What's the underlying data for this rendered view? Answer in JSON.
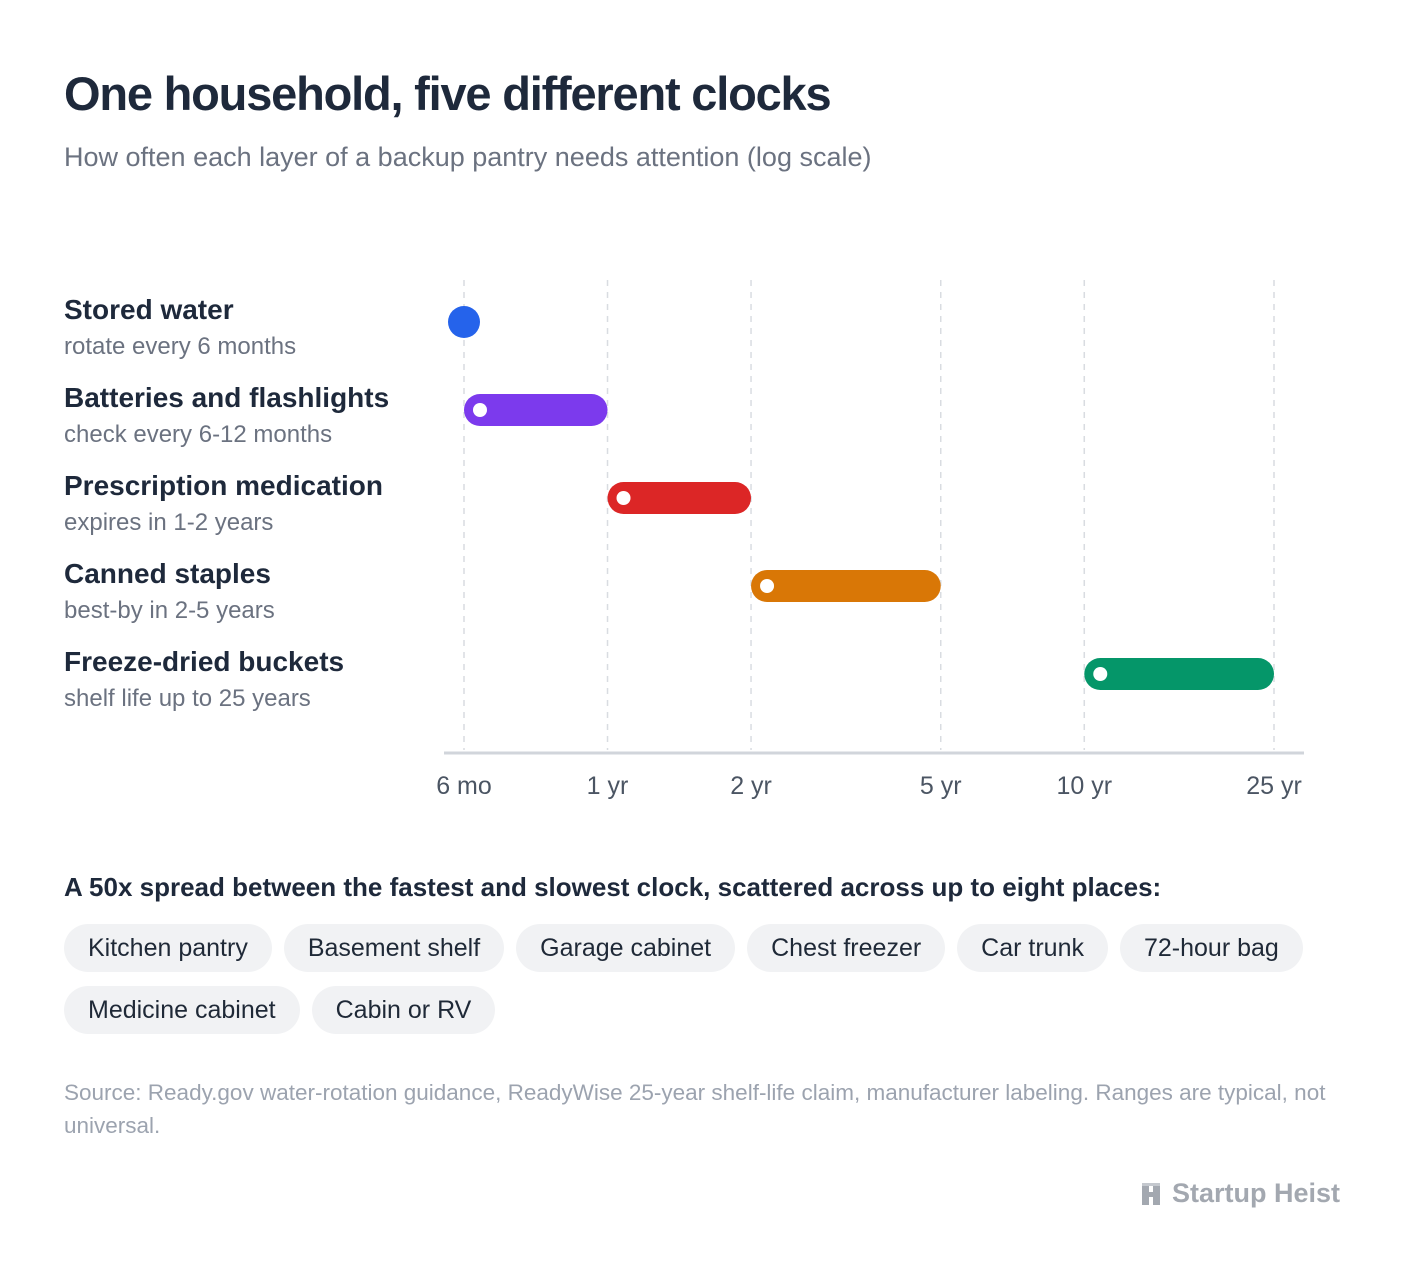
{
  "header": {
    "title": "One household, five different clocks",
    "subtitle": "How often each layer of a backup pantry needs attention (log scale)"
  },
  "chart_data": {
    "type": "range",
    "scale": "log",
    "unit": "years",
    "xlim": [
      0.5,
      25
    ],
    "grid": true,
    "ticks": [
      {
        "value": 0.5,
        "label": "6 mo"
      },
      {
        "value": 1,
        "label": "1 yr"
      },
      {
        "value": 2,
        "label": "2 yr"
      },
      {
        "value": 5,
        "label": "5 yr"
      },
      {
        "value": 10,
        "label": "10 yr"
      },
      {
        "value": 25,
        "label": "25 yr"
      }
    ],
    "rows": [
      {
        "name": "Stored water",
        "note": "rotate every 6 months",
        "start": 0.5,
        "end": 0.5,
        "color": "#2563eb"
      },
      {
        "name": "Batteries and flashlights",
        "note": "check every 6-12 months",
        "start": 0.5,
        "end": 1,
        "color": "#7c3aed"
      },
      {
        "name": "Prescription medication",
        "note": "expires in 1-2 years",
        "start": 1,
        "end": 2,
        "color": "#dc2626"
      },
      {
        "name": "Canned staples",
        "note": "best-by in 2-5 years",
        "start": 2,
        "end": 5,
        "color": "#d97706"
      },
      {
        "name": "Freeze-dried buckets",
        "note": "shelf life up to 25 years",
        "start": 10,
        "end": 25,
        "color": "#059669"
      }
    ]
  },
  "places": {
    "heading": "A 50x spread between the fastest and slowest clock, scattered across up to eight places:",
    "items": [
      "Kitchen pantry",
      "Basement shelf",
      "Garage cabinet",
      "Chest freezer",
      "Car trunk",
      "72-hour bag",
      "Medicine cabinet",
      "Cabin or RV"
    ]
  },
  "footer": {
    "source": "Source: Ready.gov water-rotation guidance, ReadyWise 25-year shelf-life claim, manufacturer labeling. Ranges are typical, not universal.",
    "brand": "Startup Heist",
    "brand_icon": "startup-heist-logo-icon"
  }
}
